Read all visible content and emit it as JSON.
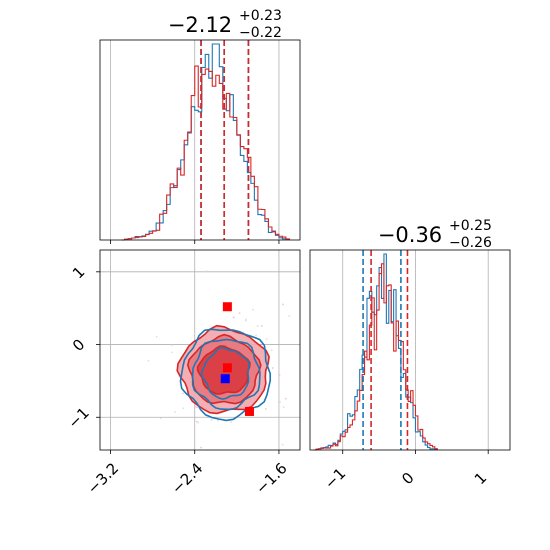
{
  "colors": {
    "blue": "#1f77b4",
    "red": "#d62728",
    "grid": "#b0b0b0",
    "marker_red": "#ff0000",
    "marker_blue": "#0000ff"
  },
  "chart_data": [
    {
      "panel": "top-left",
      "type": "histogram",
      "parameter_axis": "x",
      "title": {
        "median": "−2.12",
        "plus": "+0.23",
        "minus": "−0.22"
      },
      "xlim": [
        -3.3,
        -1.4
      ],
      "ylim": [
        0,
        1
      ],
      "xticks": [
        -3.2,
        -2.4,
        -1.6
      ],
      "grid": true,
      "series": [
        {
          "color": "blue",
          "quantile_lines": [
            -2.34,
            -2.12,
            -1.89
          ],
          "bins_x": [
            -3.1,
            -3.0,
            -2.9,
            -2.8,
            -2.7,
            -2.6,
            -2.5,
            -2.4,
            -2.3,
            -2.2,
            -2.1,
            -2.0,
            -1.9,
            -1.8,
            -1.7,
            -1.6,
            -1.5
          ],
          "density": [
            0.0,
            0.01,
            0.02,
            0.05,
            0.15,
            0.3,
            0.5,
            0.68,
            0.88,
            0.95,
            0.8,
            0.55,
            0.35,
            0.15,
            0.05,
            0.01,
            0.0
          ]
        },
        {
          "color": "red",
          "quantile_lines": [
            -2.34,
            -2.12,
            -1.89
          ],
          "bins_x": [
            -3.1,
            -3.0,
            -2.9,
            -2.8,
            -2.7,
            -2.6,
            -2.5,
            -2.4,
            -2.3,
            -2.2,
            -2.1,
            -2.0,
            -1.9,
            -1.8,
            -1.7,
            -1.6,
            -1.5
          ],
          "density": [
            0.0,
            0.01,
            0.02,
            0.04,
            0.12,
            0.28,
            0.48,
            0.7,
            0.82,
            0.85,
            0.78,
            0.58,
            0.38,
            0.18,
            0.06,
            0.02,
            0.0
          ]
        }
      ]
    },
    {
      "panel": "bottom-left",
      "type": "contour",
      "xlim": [
        -3.3,
        -1.4
      ],
      "ylim": [
        -1.45,
        1.3
      ],
      "xticks": [
        -3.2,
        -2.4,
        -1.6
      ],
      "yticks": [
        1,
        0,
        -1
      ],
      "grid": true,
      "contours": [
        {
          "color": "red",
          "center": [
            -2.12,
            -0.36
          ],
          "radii": [
            [
              0.42,
              0.58
            ],
            [
              0.33,
              0.46
            ],
            [
              0.24,
              0.32
            ]
          ],
          "filled": true
        },
        {
          "color": "blue",
          "center": [
            -2.1,
            -0.4
          ],
          "radii": [
            [
              0.42,
              0.62
            ],
            [
              0.32,
              0.48
            ],
            [
              0.22,
              0.34
            ]
          ],
          "filled": false
        }
      ],
      "markers": [
        {
          "color": "marker_red",
          "x": -2.09,
          "y": 0.52
        },
        {
          "color": "marker_red",
          "x": -2.09,
          "y": -0.32
        },
        {
          "color": "marker_blue",
          "x": -2.11,
          "y": -0.47
        },
        {
          "color": "marker_red",
          "x": -1.88,
          "y": -0.92
        }
      ]
    },
    {
      "panel": "bottom-right",
      "type": "histogram",
      "parameter_axis": "x",
      "title": {
        "median": "−0.36",
        "plus": "+0.25",
        "minus": "−0.26"
      },
      "xlim": [
        -1.45,
        1.3
      ],
      "ylim": [
        0,
        1
      ],
      "xticks": [
        -1,
        0,
        1
      ],
      "grid": true,
      "series": [
        {
          "color": "blue",
          "quantile_lines": [
            -0.72,
            -0.2
          ],
          "bins_x": [
            -1.4,
            -1.3,
            -1.2,
            -1.1,
            -1.0,
            -0.9,
            -0.8,
            -0.7,
            -0.6,
            -0.5,
            -0.4,
            -0.3,
            -0.2,
            -0.1,
            0.0,
            0.1,
            0.2,
            0.3
          ],
          "density": [
            0.0,
            0.01,
            0.02,
            0.04,
            0.08,
            0.18,
            0.32,
            0.5,
            0.72,
            0.82,
            0.85,
            0.65,
            0.45,
            0.28,
            0.12,
            0.04,
            0.01,
            0.0
          ]
        },
        {
          "color": "red",
          "quantile_lines": [
            -0.61,
            -0.11
          ],
          "bins_x": [
            -1.4,
            -1.3,
            -1.2,
            -1.1,
            -1.0,
            -0.9,
            -0.8,
            -0.7,
            -0.6,
            -0.5,
            -0.4,
            -0.3,
            -0.2,
            -0.1,
            0.0,
            0.1,
            0.2,
            0.3
          ],
          "density": [
            0.0,
            0.01,
            0.01,
            0.03,
            0.06,
            0.14,
            0.28,
            0.46,
            0.7,
            0.8,
            0.78,
            0.68,
            0.48,
            0.3,
            0.16,
            0.06,
            0.02,
            0.0
          ]
        }
      ]
    }
  ]
}
